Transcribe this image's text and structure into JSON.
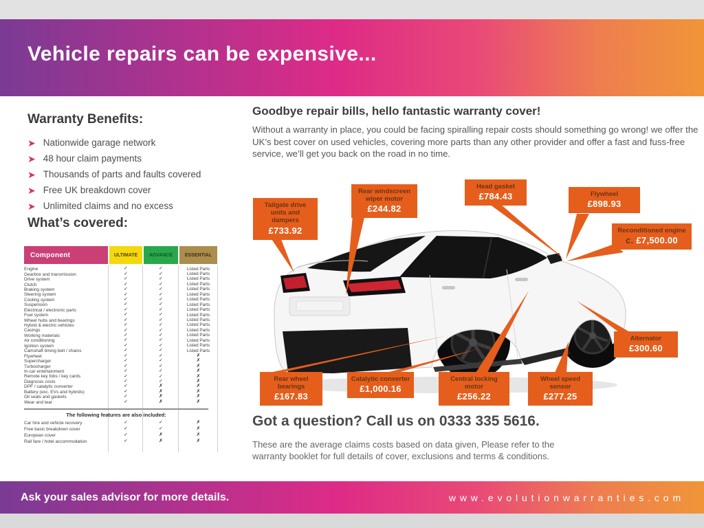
{
  "banner": {
    "title": "Vehicle repairs can be expensive..."
  },
  "benefits": {
    "title": "Warranty Benefits:",
    "arrow_icon": "➤",
    "items": [
      "Nationwide garage network",
      "48 hour claim payments",
      "Thousands of parts and faults covered",
      "Free UK breakdown cover",
      "Unlimited claims and no excess"
    ]
  },
  "covered": {
    "title": "What’s covered:",
    "columns": [
      "Component",
      "ULTIMATE",
      "ADVANCE",
      "ESSENTIAL"
    ],
    "rows": [
      [
        "Engine",
        "✓",
        "✓",
        "Listed Parts"
      ],
      [
        "Gearbox and transmission",
        "✓",
        "✓",
        "Listed Parts"
      ],
      [
        "Drive system",
        "✓",
        "✓",
        "Listed Parts"
      ],
      [
        "Clutch",
        "✓",
        "✓",
        "Listed Parts"
      ],
      [
        "Braking system",
        "✓",
        "✓",
        "Listed Parts"
      ],
      [
        "Steering system",
        "✓",
        "✓",
        "Listed Parts"
      ],
      [
        "Cooling system",
        "✓",
        "✓",
        "Listed Parts"
      ],
      [
        "Suspension",
        "✓",
        "✓",
        "Listed Parts"
      ],
      [
        "Electrical / electronic parts",
        "✓",
        "✓",
        "Listed Parts"
      ],
      [
        "Fuel system",
        "✓",
        "✓",
        "Listed Parts"
      ],
      [
        "Wheel hubs and bearings",
        "✓",
        "✓",
        "Listed Parts"
      ],
      [
        "Hybrid & electric vehicles",
        "✓",
        "✓",
        "Listed Parts"
      ],
      [
        "Casings",
        "✓",
        "✓",
        "Listed Parts"
      ],
      [
        "Working materials",
        "✓",
        "✓",
        "Listed Parts"
      ],
      [
        "Air conditioning",
        "✓",
        "✓",
        "Listed Parts"
      ],
      [
        "Ignition system",
        "✓",
        "✓",
        "Listed Parts"
      ],
      [
        "Camshaft timing belt / chains",
        "✓",
        "✓",
        "Listed Parts"
      ],
      [
        "Flywheel",
        "✓",
        "✓",
        "✗"
      ],
      [
        "Supercharger",
        "✓",
        "✓",
        "✗"
      ],
      [
        "Turbocharger",
        "✓",
        "✓",
        "✗"
      ],
      [
        "In-car entertainment",
        "✓",
        "✓",
        "✗"
      ],
      [
        "Remote key fobs / key cards",
        "✓",
        "✓",
        "✗"
      ],
      [
        "Diagnosis costs",
        "✓",
        "✓",
        "✗"
      ],
      [
        "DPF / catalytic converter",
        "✓",
        "✗",
        "✗"
      ],
      [
        "Battery (exc. EVs and hybrids)",
        "✓",
        "✗",
        "✗"
      ],
      [
        "Oil seals and gaskets",
        "✓",
        "✗",
        "✗"
      ],
      [
        "Wear and tear",
        "✓",
        "✗",
        "✗"
      ]
    ],
    "features_title": "The following features are also included:",
    "feature_rows": [
      [
        "Car hire and vehicle recovery",
        "✓",
        "✓",
        "✗"
      ],
      [
        "Free basic breakdown cover",
        "✓",
        "✓",
        "✗"
      ],
      [
        "European cover",
        "✓",
        "✗",
        "✗"
      ],
      [
        "Rail fare / hotel accommodation",
        "✓",
        "✗",
        "✗"
      ]
    ]
  },
  "intro": {
    "heading": "Goodbye repair bills, hello fantastic warranty cover!",
    "body": "Without a warranty in place, you could be facing spiralling repair costs should something go wrong! we offer the UK’s best cover on used vehicles, covering more parts than any other provider and offer a fast and fuss-free service, we’ll get you back on the road in no time."
  },
  "callouts": [
    {
      "id": "tailgate",
      "label": "Tailgate drive units and dampers",
      "price": "£733.92"
    },
    {
      "id": "rear_windscreen",
      "label": "Rear windscreen wiper motor",
      "price": "£244.82"
    },
    {
      "id": "head_gasket",
      "label": "Head gasket",
      "price": "£784.43"
    },
    {
      "id": "flywheel",
      "label": "Flywheel",
      "price": "£898.93"
    },
    {
      "id": "recon_engine",
      "label": "Reconditioned engine",
      "price_prefix": "c. ",
      "price": "£7,500.00"
    },
    {
      "id": "alternator",
      "label": "Alternator",
      "price": "£300.60"
    },
    {
      "id": "rear_wheel_bearings",
      "label": "Rear wheel bearings",
      "price": "£167.83"
    },
    {
      "id": "catalytic_converter",
      "label": "Catalytic converter",
      "price": "£1,000.16"
    },
    {
      "id": "central_locking",
      "label": "Central locking motor",
      "price": "£256.22"
    },
    {
      "id": "wheel_speed",
      "label": "Wheel speed sensor",
      "price": "£277.25"
    }
  ],
  "question": {
    "heading": "Got a question? Call us on 0333 335 5616.",
    "note": "These are the average claims costs based on data given, Please refer to the warranty booklet for full details of cover, exclusions and terms & conditions."
  },
  "footer": {
    "left": "Ask your sales advisor for more details.",
    "website": "www.evolutionwarranties.com"
  },
  "colors": {
    "accent_orange": "#e55e1c",
    "accent_pink": "#d5306f",
    "banner_gradient_start": "#7a3b94",
    "banner_gradient_mid": "#de2b87",
    "banner_gradient_end": "#f09538",
    "table_component_bg": "#c93f76",
    "table_ultimate_bg": "#f5d80e",
    "table_advance_bg": "#29a84b",
    "table_essential_bg": "#ab8d4e"
  }
}
